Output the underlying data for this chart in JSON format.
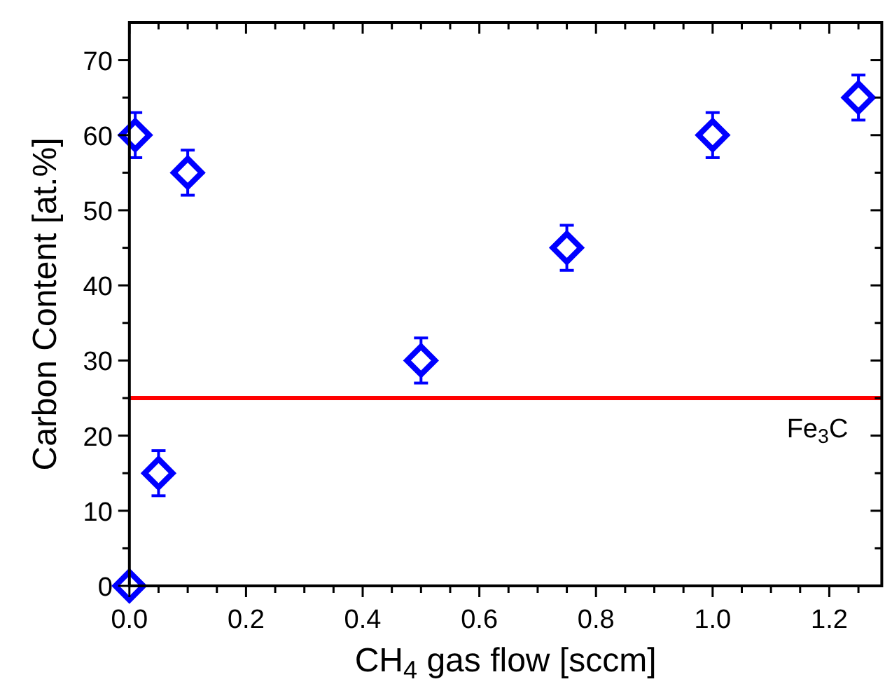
{
  "chart_data": {
    "type": "scatter",
    "xlabel": "CH$_{4}$ gas flow [sccm]",
    "ylabel": "Carbon Content [at.%]",
    "marker": "diamond",
    "grid": false,
    "series": [
      {
        "color": "#0000ff",
        "x": [
          0.01,
          0,
          0.05,
          0.1,
          0.5,
          0.75,
          1.0,
          1.25
        ],
        "values": [
          60,
          0,
          15,
          55,
          30,
          45,
          60,
          65
        ],
        "errors": [
          3,
          null,
          3,
          3,
          3,
          3,
          3,
          3
        ]
      }
    ],
    "ref_lines": [
      {
        "axis": "y",
        "value": 25,
        "label": "Fe$_{3}$C",
        "color": "#ff0000",
        "line_style": "solid"
      }
    ],
    "xlim": [
      0,
      1.29
    ],
    "ylim": [
      0,
      75
    ],
    "xticks": [
      {
        "value": 0,
        "label": "0.0"
      },
      {
        "value": 0.05,
        "label": null
      },
      {
        "value": 0.2,
        "label": "0.2"
      },
      {
        "value": 0.1,
        "label": null
      },
      {
        "value": 0.15,
        "label": null
      },
      {
        "value": 0.25,
        "label": null
      },
      {
        "value": 0.3,
        "label": null
      },
      {
        "value": 0.35,
        "label": null
      },
      {
        "value": 0.4,
        "label": "0.4"
      },
      {
        "value": 0.45,
        "label": null
      },
      {
        "value": 0.5,
        "label": null
      },
      {
        "value": 0.55,
        "label": null
      },
      {
        "value": 0.6,
        "label": "0.6"
      },
      {
        "value": 0.65,
        "label": null
      },
      {
        "value": 0.7,
        "label": null
      },
      {
        "value": 0.75,
        "label": null
      },
      {
        "value": 0.8,
        "label": "0.8"
      },
      {
        "value": 0.85,
        "label": null
      },
      {
        "value": 0.9,
        "label": null
      },
      {
        "value": 0.95,
        "label": null
      },
      {
        "value": 1.0,
        "label": "1.0"
      },
      {
        "value": 1.05,
        "label": null
      },
      {
        "value": 1.1,
        "label": null
      },
      {
        "value": 1.15,
        "label": null
      },
      {
        "value": 1.2,
        "label": "1.2"
      },
      {
        "value": 1.25,
        "label": null
      }
    ],
    "yticks": [
      0,
      {
        "value": 5,
        "label": null
      },
      10,
      {
        "value": 15,
        "label": null
      },
      20,
      {
        "value": 25,
        "label": null
      },
      30,
      {
        "value": 35,
        "label": null
      },
      40,
      {
        "value": 45,
        "label": null
      },
      50,
      {
        "value": 55,
        "label": null
      },
      60,
      {
        "value": 65,
        "label": null
      },
      70
    ]
  }
}
